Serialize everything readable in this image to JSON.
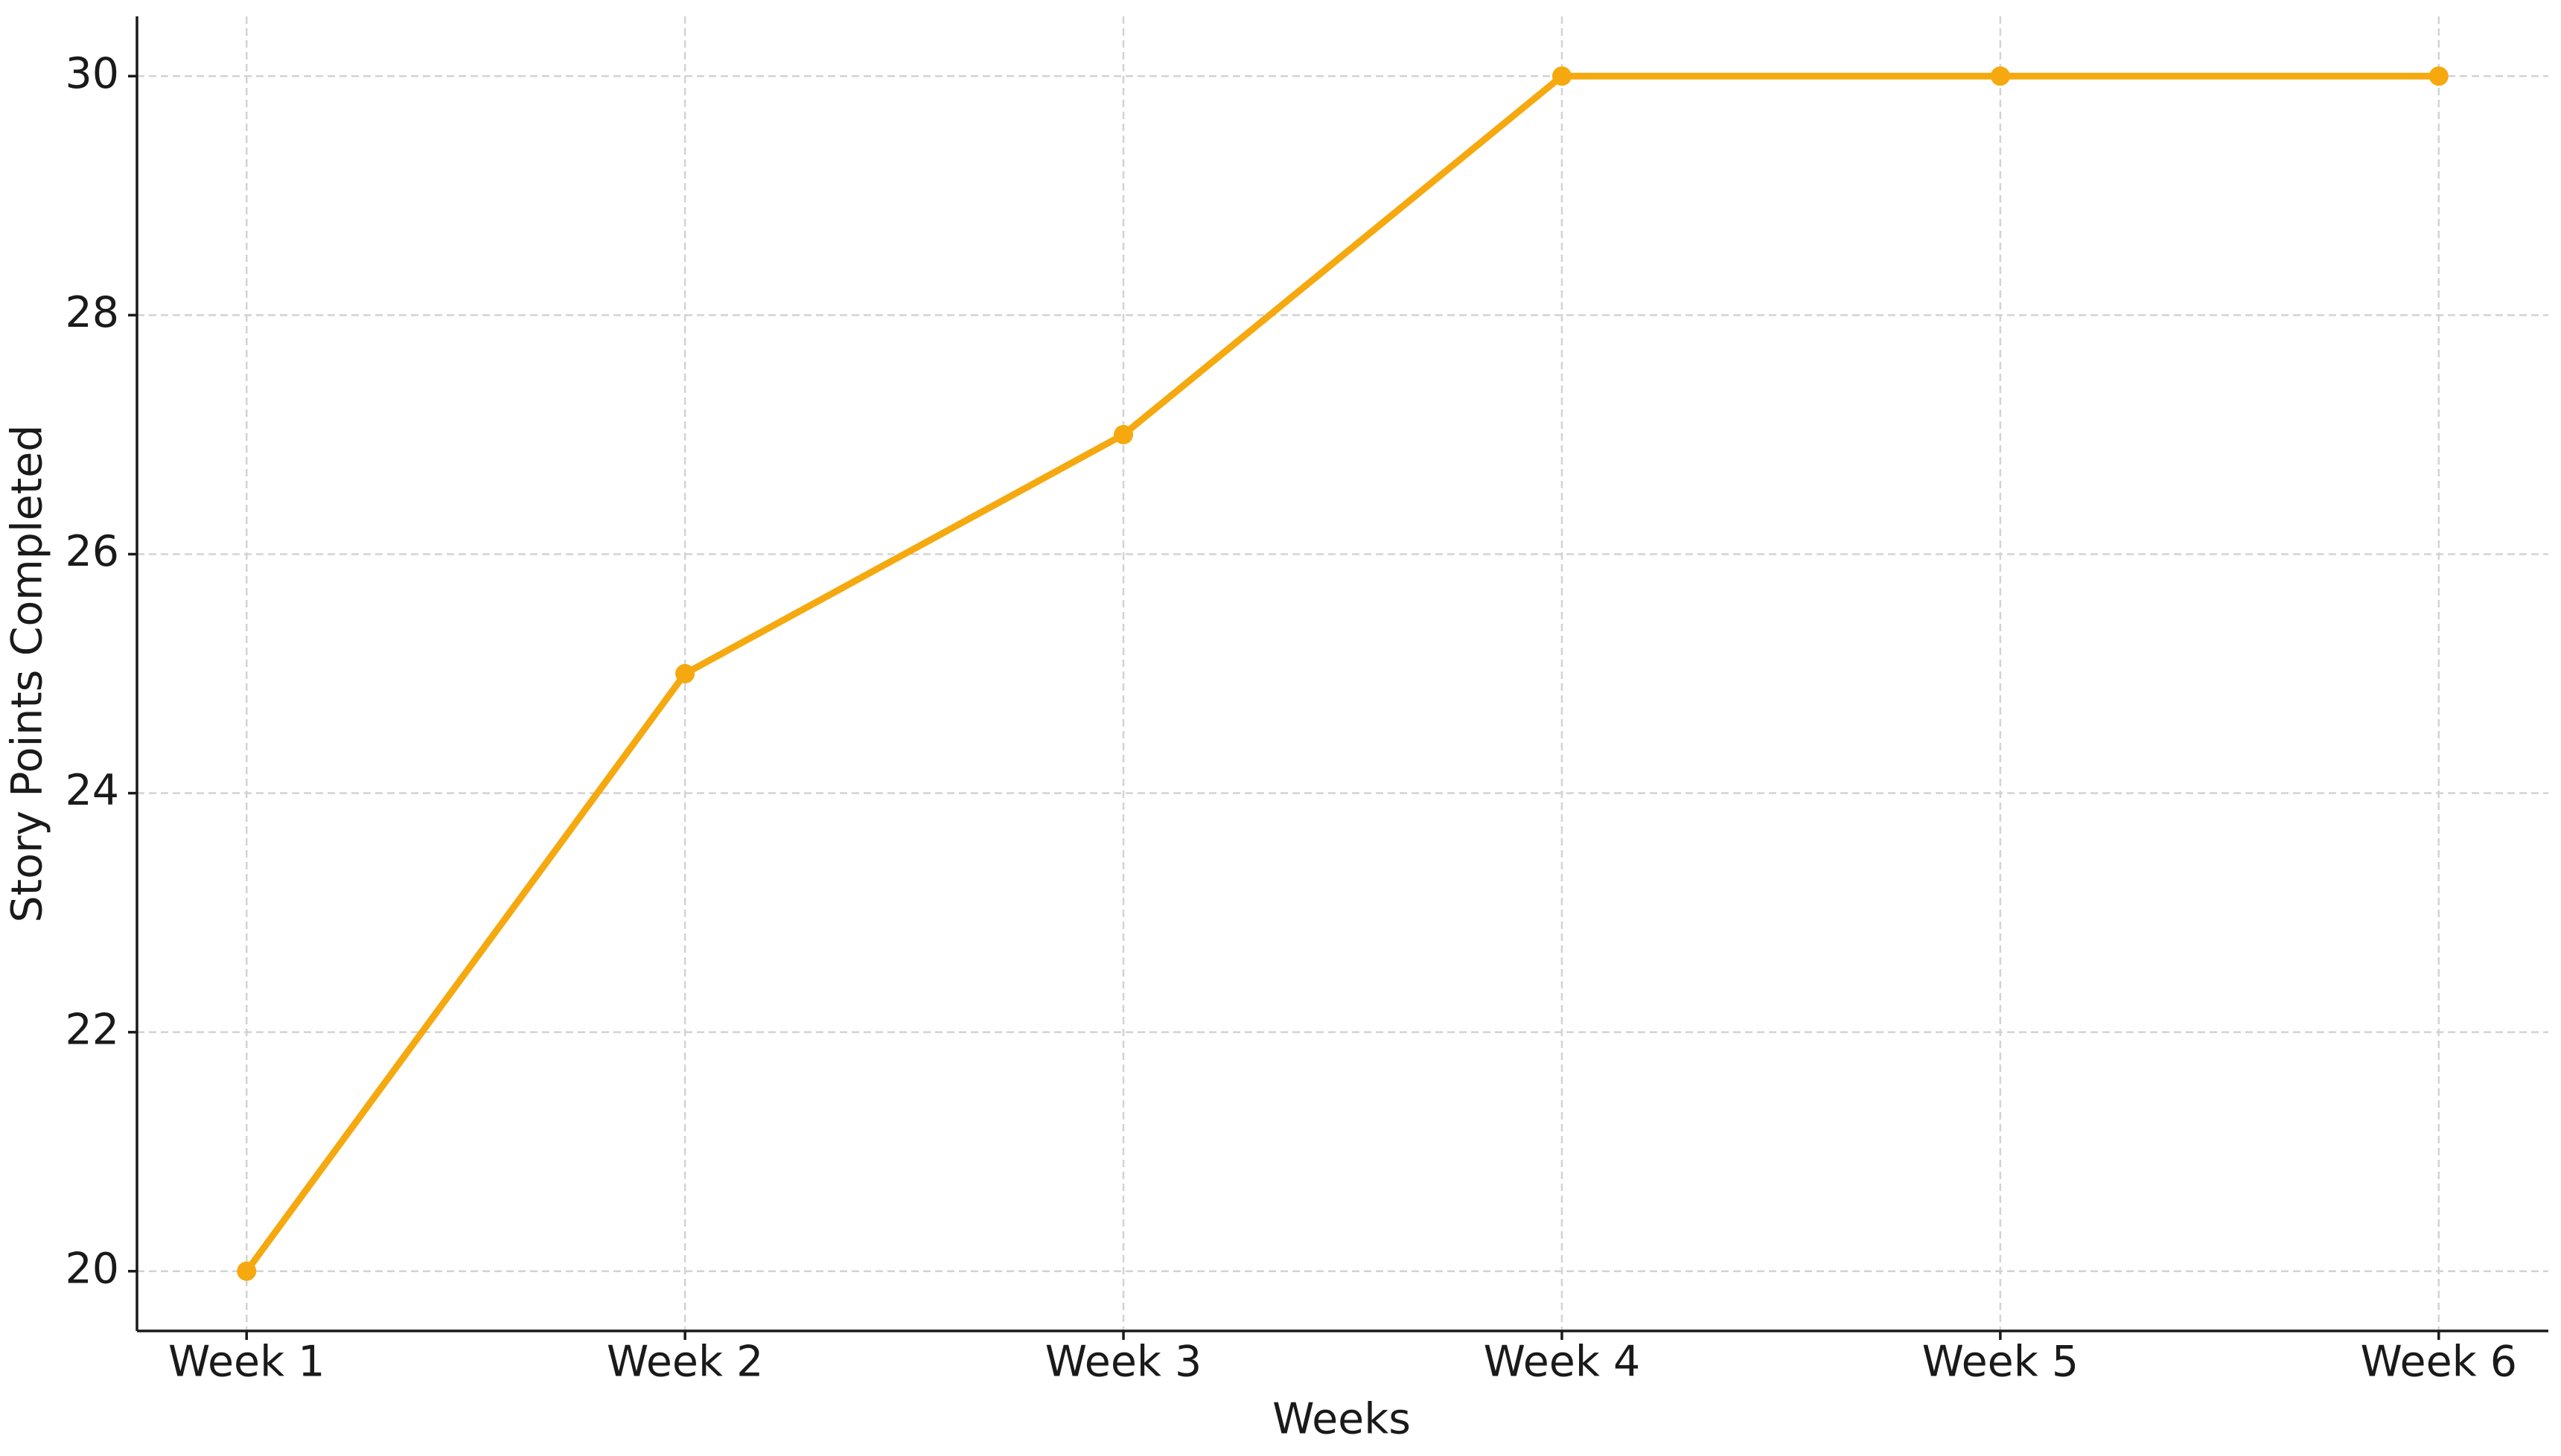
{
  "chart_data": {
    "type": "line",
    "x_label": "Weeks",
    "y_label": "Story Points Completed",
    "categories": [
      "Week 1",
      "Week 2",
      "Week 3",
      "Week 4",
      "Week 5",
      "Week 6"
    ],
    "series": [
      {
        "color": "#f5a90f",
        "values": [
          20,
          25,
          27,
          30,
          30,
          30
        ]
      }
    ],
    "ylim": [
      19.5,
      30.5
    ],
    "yticks": [
      20,
      22,
      24,
      26,
      28,
      30
    ],
    "grid": true
  }
}
